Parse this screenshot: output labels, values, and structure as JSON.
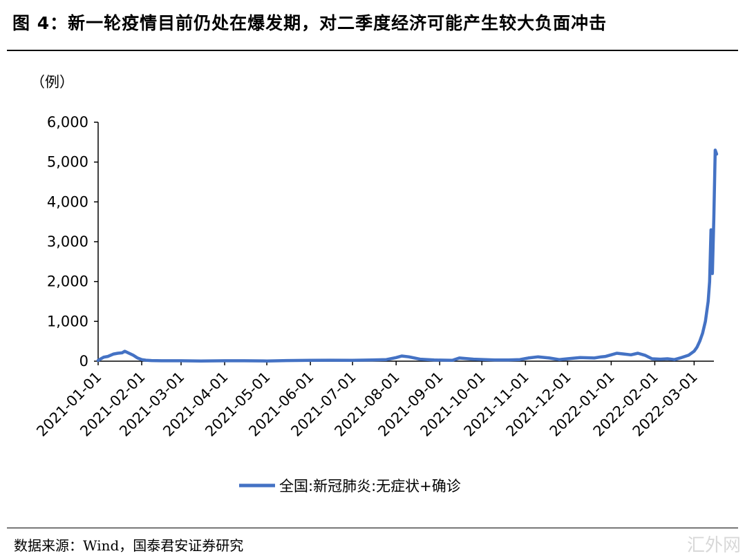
{
  "figure": {
    "title": "图 4：新一轮疫情目前仍处在爆发期，对二季度经济可能产生较大负面冲击",
    "source": "数据来源：Wind，国泰君安证券研究",
    "watermark": "汇外网"
  },
  "chart_data": {
    "type": "line",
    "title": "",
    "xlabel": "",
    "ylabel": "（例）",
    "ylim": [
      0,
      6000
    ],
    "yticks": [
      0,
      1000,
      2000,
      3000,
      4000,
      5000,
      6000
    ],
    "ytick_labels": [
      "0",
      "1,000",
      "2,000",
      "3,000",
      "4,000",
      "5,000",
      "6,000"
    ],
    "xlim": [
      "2021-01-01",
      "2022-03-18"
    ],
    "xtick_labels": [
      "2021-01-01",
      "2021-02-01",
      "2021-03-01",
      "2021-04-01",
      "2021-05-01",
      "2021-06-01",
      "2021-07-01",
      "2021-08-01",
      "2021-09-01",
      "2021-10-01",
      "2021-11-01",
      "2021-12-01",
      "2022-01-01",
      "2022-02-01",
      "2022-03-01"
    ],
    "grid": false,
    "legend_position": "bottom-center",
    "series": [
      {
        "name": "全国:新冠肺炎:无症状+确诊",
        "color": "#4472C4",
        "x": [
          "2021-01-01",
          "2021-01-05",
          "2021-01-08",
          "2021-01-12",
          "2021-01-15",
          "2021-01-18",
          "2021-01-20",
          "2021-01-23",
          "2021-01-26",
          "2021-01-29",
          "2021-02-01",
          "2021-02-04",
          "2021-02-08",
          "2021-02-15",
          "2021-03-01",
          "2021-03-15",
          "2021-04-01",
          "2021-04-15",
          "2021-05-01",
          "2021-05-15",
          "2021-06-01",
          "2021-06-15",
          "2021-07-01",
          "2021-07-15",
          "2021-07-25",
          "2021-07-28",
          "2021-08-01",
          "2021-08-05",
          "2021-08-10",
          "2021-08-18",
          "2021-08-28",
          "2021-09-10",
          "2021-09-15",
          "2021-09-25",
          "2021-10-10",
          "2021-10-20",
          "2021-10-28",
          "2021-11-03",
          "2021-11-10",
          "2021-11-18",
          "2021-11-25",
          "2021-12-01",
          "2021-12-10",
          "2021-12-20",
          "2021-12-25",
          "2021-12-28",
          "2022-01-01",
          "2022-01-05",
          "2022-01-10",
          "2022-01-15",
          "2022-01-20",
          "2022-01-25",
          "2022-01-30",
          "2022-02-05",
          "2022-02-10",
          "2022-02-15",
          "2022-02-20",
          "2022-02-25",
          "2022-03-01",
          "2022-03-03",
          "2022-03-05",
          "2022-03-07",
          "2022-03-09",
          "2022-03-11",
          "2022-03-12",
          "2022-03-13",
          "2022-03-14",
          "2022-03-15",
          "2022-03-16",
          "2022-03-17"
        ],
        "values": [
          20,
          100,
          120,
          180,
          200,
          210,
          250,
          200,
          150,
          80,
          40,
          25,
          15,
          10,
          10,
          5,
          10,
          10,
          5,
          15,
          20,
          25,
          20,
          30,
          40,
          60,
          90,
          130,
          110,
          50,
          30,
          20,
          80,
          50,
          30,
          30,
          40,
          80,
          110,
          80,
          40,
          60,
          90,
          80,
          110,
          120,
          160,
          200,
          180,
          160,
          200,
          150,
          60,
          50,
          60,
          40,
          90,
          150,
          250,
          350,
          500,
          700,
          1000,
          1500,
          2000,
          3300,
          2200,
          3600,
          5300,
          5200
        ]
      }
    ]
  }
}
